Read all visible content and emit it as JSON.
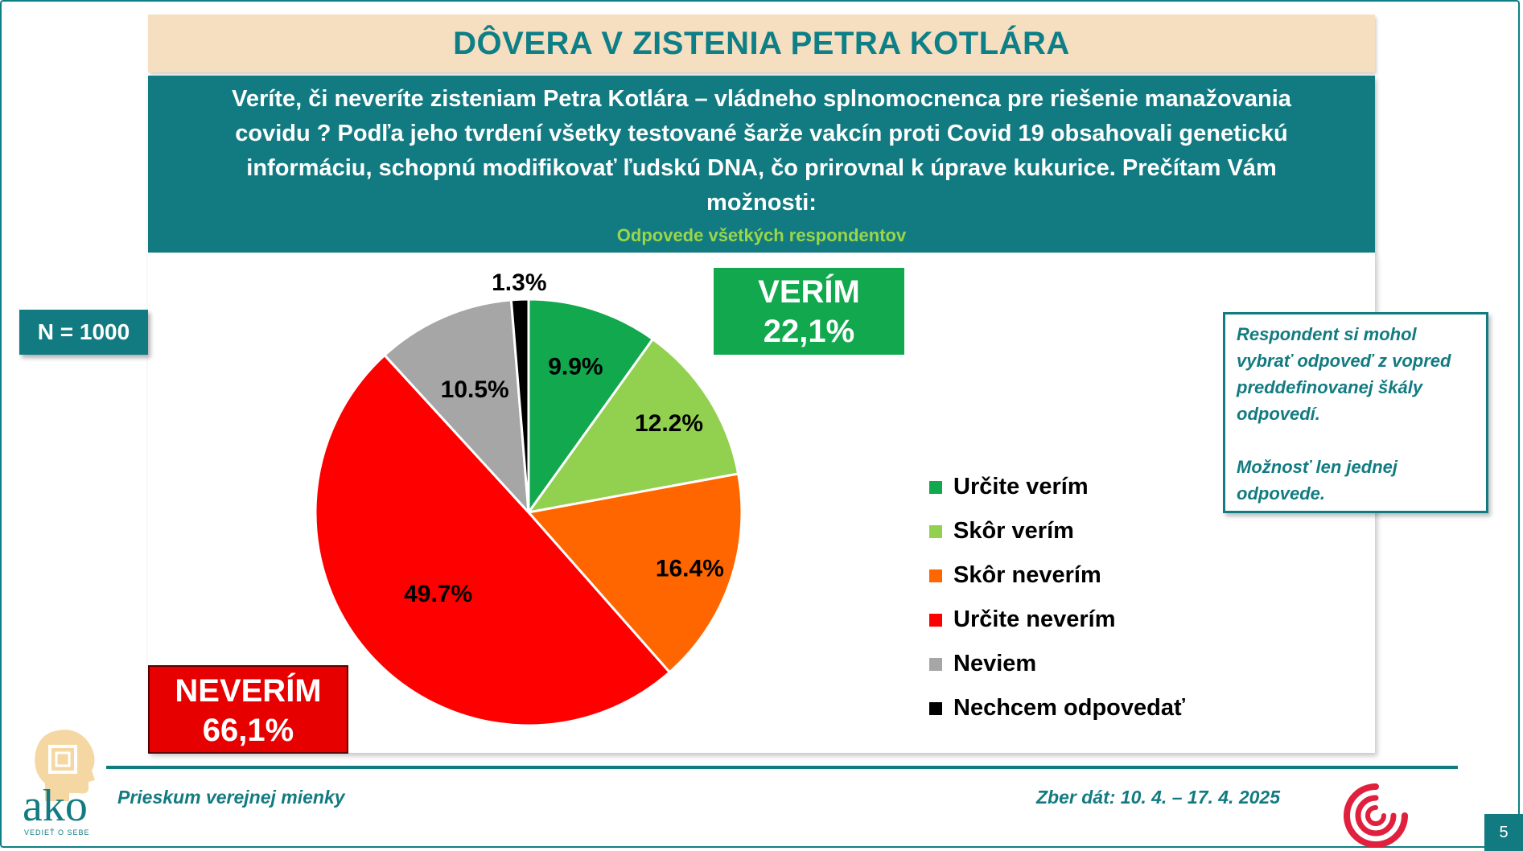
{
  "title": "DÔVERA V ZISTENIA PETRA KOTLÁRA",
  "question": "Veríte, či neveríte zisteniam Petra Kotlára – vládneho splnomocnenca pre riešenie manažovania covidu ? Podľa jeho tvrdení všetky testované šarže vakcín proti Covid 19 obsahovali genetickú informáciu, schopnú modifikovať ľudskú DNA, čo prirovnal k úprave kukurice. Prečítam Vám možnosti:",
  "subtitle": "Odpovede všetkých respondentov",
  "sample": "N = 1000",
  "verim": {
    "label": "VERÍM",
    "value": "22,1%",
    "color": "#11a84e"
  },
  "neverim": {
    "label": "NEVERÍM",
    "value": "66,1%",
    "color": "#e60000"
  },
  "note": {
    "line1": "Respondent si mohol vybrať odpoveď z vopred preddefinovanej škály odpovedí.",
    "line2": "Možnosť len jednej odpovede."
  },
  "footer": {
    "left": "Prieskum verejnej mienky",
    "right": "Zber dát: 10. 4. – 17. 4. 2025",
    "logo_text": "ako",
    "logo_tagline": "VEDIEŤ O SEBE",
    "page": "5"
  },
  "chart_data": {
    "type": "pie",
    "categories": [
      "Určite verím",
      "Skôr verím",
      "Skôr neverím",
      "Určite neverím",
      "Neviem",
      "Nechcem odpovedať"
    ],
    "values": [
      9.9,
      12.2,
      16.4,
      49.7,
      10.5,
      1.3
    ],
    "labels": [
      "9.9%",
      "12.2%",
      "16.4%",
      "49.7%",
      "10.5%",
      "1.3%"
    ],
    "colors": [
      "#11a84e",
      "#92d050",
      "#ff6600",
      "#ff0000",
      "#a6a6a6",
      "#000000"
    ],
    "start": "top, clockwise",
    "legend": "right"
  }
}
